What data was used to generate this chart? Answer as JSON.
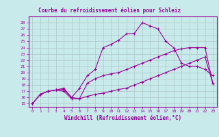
{
  "title": "Courbe du refroidissement éolien pour Schleiz",
  "xlabel": "Windchill (Refroidissement éolien,°C)",
  "bg_color": "#c8eaea",
  "line_color": "#990099",
  "grid_color": "#b0c8c8",
  "xlim": [
    -0.5,
    23.5
  ],
  "ylim": [
    14.5,
    29.0
  ],
  "xticks": [
    0,
    1,
    2,
    3,
    4,
    5,
    6,
    7,
    8,
    9,
    10,
    11,
    12,
    13,
    14,
    15,
    16,
    17,
    18,
    19,
    20,
    21,
    22,
    23
  ],
  "yticks": [
    15,
    16,
    17,
    18,
    19,
    20,
    21,
    22,
    23,
    24,
    25,
    26,
    27,
    28
  ],
  "line1_x": [
    0,
    1,
    2,
    3,
    4,
    5,
    6,
    7,
    8,
    9,
    10,
    11,
    12,
    13,
    14,
    15,
    16,
    17,
    18,
    19,
    20,
    21,
    22,
    23
  ],
  "line1_y": [
    15.0,
    16.5,
    17.0,
    17.2,
    17.3,
    16.0,
    15.8,
    16.2,
    16.5,
    16.7,
    17.0,
    17.3,
    17.5,
    18.0,
    18.5,
    19.0,
    19.5,
    20.0,
    20.5,
    21.0,
    21.5,
    22.0,
    22.5,
    18.2
  ],
  "line2_x": [
    0,
    1,
    2,
    3,
    4,
    5,
    6,
    7,
    8,
    9,
    10,
    11,
    12,
    13,
    14,
    15,
    16,
    17,
    18,
    19,
    20,
    21,
    22,
    23
  ],
  "line2_y": [
    15.0,
    16.5,
    17.0,
    17.2,
    17.5,
    16.0,
    17.5,
    19.5,
    20.5,
    24.0,
    24.5,
    25.2,
    26.2,
    26.3,
    28.0,
    27.5,
    27.0,
    25.0,
    24.0,
    21.5,
    21.0,
    21.0,
    20.5,
    19.5
  ],
  "line3_x": [
    0,
    1,
    2,
    3,
    4,
    5,
    6,
    7,
    8,
    9,
    10,
    11,
    12,
    13,
    14,
    15,
    16,
    17,
    18,
    19,
    20,
    21,
    22,
    23
  ],
  "line3_y": [
    15.0,
    16.5,
    17.0,
    17.2,
    17.0,
    15.8,
    15.8,
    18.3,
    19.0,
    19.5,
    19.8,
    20.0,
    20.5,
    21.0,
    21.5,
    22.0,
    22.5,
    23.0,
    23.5,
    23.8,
    24.0,
    24.0,
    24.0,
    18.2
  ]
}
